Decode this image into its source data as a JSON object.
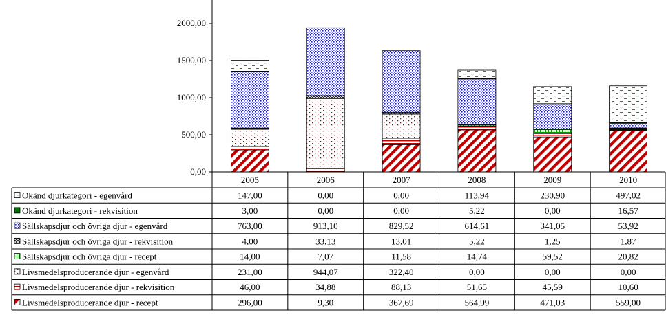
{
  "chart_data": {
    "type": "bar",
    "stacked": true,
    "categories": [
      "2005",
      "2006",
      "2007",
      "2008",
      "2009",
      "2010"
    ],
    "y_ticks": [
      "0,00",
      "500,00",
      "1000,00",
      "1500,00",
      "2000,00"
    ],
    "ylim": [
      0,
      2000
    ],
    "gridlines": false,
    "legend": "table-below",
    "series": [
      {
        "name": "Livsmedelsproducerande djur - recept",
        "values": [
          296.0,
          9.3,
          367.69,
          564.99,
          471.03,
          559.0
        ],
        "labels": [
          "296,00",
          "9,30",
          "367,69",
          "564,99",
          "471,03",
          "559,00"
        ],
        "color": "#c00000",
        "pattern": "diagonal-hatch"
      },
      {
        "name": "Livsmedelsproducerande djur - rekvisition",
        "values": [
          46.0,
          34.88,
          88.13,
          51.65,
          45.59,
          10.6
        ],
        "labels": [
          "46,00",
          "34,88",
          "88,13",
          "51,65",
          "45,59",
          "10,60"
        ],
        "color": "#c00000",
        "pattern": "horizontal-lines"
      },
      {
        "name": "Livsmedelsproducerande djur - egenvård",
        "values": [
          231.0,
          944.07,
          322.4,
          0.0,
          0.0,
          0.0
        ],
        "labels": [
          "231,00",
          "944,07",
          "322,40",
          "0,00",
          "0,00",
          "0,00"
        ],
        "color": "#c00000",
        "pattern": "sparse-dots"
      },
      {
        "name": "Sällskapsdjur och övriga djur - recept",
        "values": [
          14.0,
          7.07,
          11.58,
          14.74,
          59.52,
          20.82
        ],
        "labels": [
          "14,00",
          "7,07",
          "11,58",
          "14,74",
          "59,52",
          "20,82"
        ],
        "color": "#00a000",
        "pattern": "green-grid"
      },
      {
        "name": "Sällskapsdjur och övriga djur - rekvisition",
        "values": [
          4.0,
          33.13,
          13.01,
          5.22,
          1.25,
          1.87
        ],
        "labels": [
          "4,00",
          "33,13",
          "13,01",
          "5,22",
          "1,25",
          "1,87"
        ],
        "color": "#000000",
        "pattern": "cross-hatch"
      },
      {
        "name": "Sällskapsdjur och övriga djur - egenvård",
        "values": [
          763.0,
          913.1,
          829.52,
          614.61,
          341.05,
          53.92
        ],
        "labels": [
          "763,00",
          "913,10",
          "829,52",
          "614,61",
          "341,05",
          "53,92"
        ],
        "color": "#1f1fa8",
        "pattern": "dense-dots"
      },
      {
        "name": "Okänd djurkategori - rekvisition",
        "values": [
          3.0,
          0.0,
          0.0,
          5.22,
          0.0,
          16.57
        ],
        "labels": [
          "3,00",
          "0,00",
          "0,00",
          "5,22",
          "0,00",
          "16,57"
        ],
        "color": "#007000",
        "pattern": "solid"
      },
      {
        "name": "Okänd djurkategori - egenvård",
        "values": [
          147.0,
          0.0,
          0.0,
          113.94,
          230.9,
          497.02
        ],
        "labels": [
          "147,00",
          "0,00",
          "0,00",
          "113,94",
          "230,90",
          "497,02"
        ],
        "color": "#2e7d32",
        "pattern": "dashes"
      }
    ],
    "table_row_order": [
      7,
      6,
      5,
      4,
      3,
      2,
      1,
      0
    ]
  }
}
